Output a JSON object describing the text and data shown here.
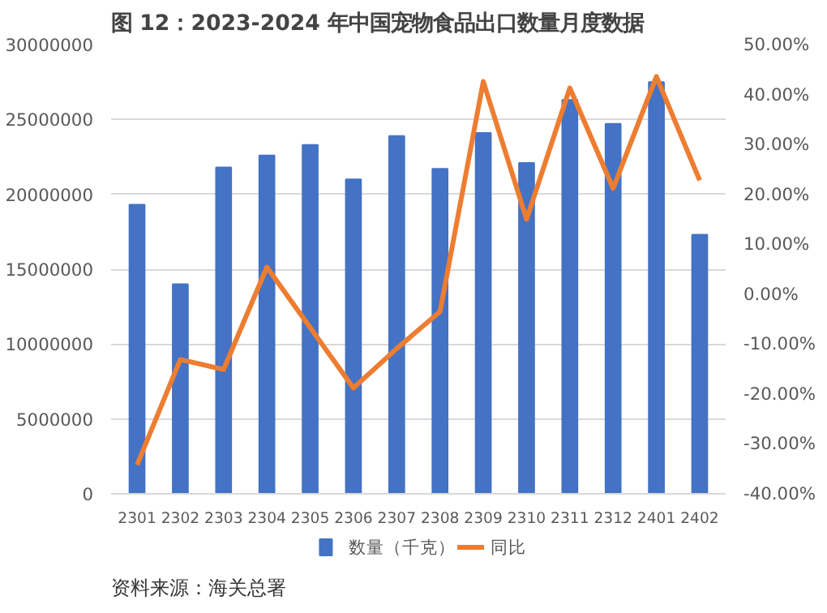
{
  "chart_data": {
    "type": "bar",
    "title": "图 12：2023-2024 年中国宠物食品出口数量月度数据",
    "categories": [
      "2301",
      "2302",
      "2303",
      "2304",
      "2305",
      "2306",
      "2307",
      "2308",
      "2309",
      "2310",
      "2311",
      "2312",
      "2401",
      "2402"
    ],
    "series": [
      {
        "name": "数量（千克）",
        "color": "#4472c4",
        "values": [
          19300000,
          14000000,
          21800000,
          22600000,
          23300000,
          21000000,
          23900000,
          21700000,
          24100000,
          22100000,
          26300000,
          24700000,
          27500000,
          17300000
        ]
      },
      {
        "name": "同比",
        "color": "#ed7d31",
        "type": "line",
        "axis": "y2",
        "values": [
          -34.2,
          -13.1,
          -15.1,
          5.4,
          -6.7,
          -18.8,
          -10.9,
          -3.5,
          42.6,
          15.0,
          41.3,
          21.2,
          43.6,
          22.8
        ]
      }
    ],
    "ylim": [
      0,
      30000000
    ],
    "yticks": [
      0,
      5000000,
      10000000,
      15000000,
      20000000,
      25000000,
      30000000
    ],
    "y2lim": [
      -40,
      50
    ],
    "y2ticks": [
      {
        "value": -40,
        "label": "-40.00%"
      },
      {
        "value": -30,
        "label": "-30.00%"
      },
      {
        "value": -20,
        "label": "-20.00%"
      },
      {
        "value": -10,
        "label": "-10.00%"
      },
      {
        "value": 0,
        "label": "0.00%"
      },
      {
        "value": 10,
        "label": "10.00%"
      },
      {
        "value": 20,
        "label": "20.00%"
      },
      {
        "value": 30,
        "label": "30.00%"
      },
      {
        "value": 40,
        "label": "40.00%"
      },
      {
        "value": 50,
        "label": "50.00%"
      }
    ],
    "grid": "y",
    "legend": "bottom",
    "annotations": [
      "资料来源：海关总署"
    ]
  }
}
